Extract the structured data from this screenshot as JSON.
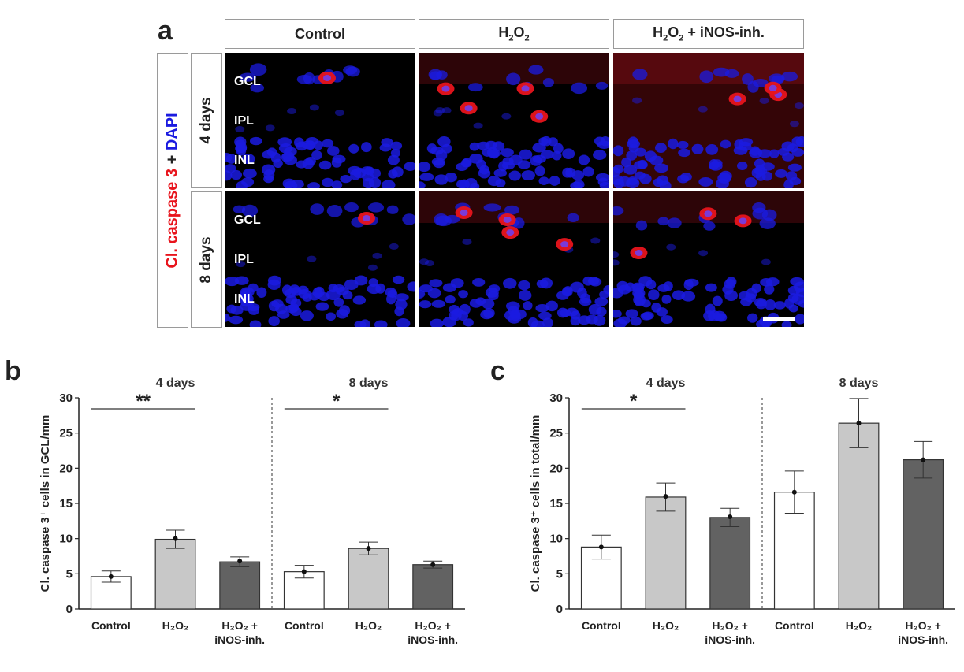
{
  "panel_a": {
    "letter": "a",
    "columns": [
      {
        "label_parts": [
          "Control"
        ]
      },
      {
        "label_parts": [
          "H",
          "2",
          "O",
          "2",
          ""
        ]
      },
      {
        "label_parts": [
          "H",
          "2",
          "O",
          "2",
          " + iNOS-inh."
        ]
      }
    ],
    "row_title": {
      "red": "Cl. caspase 3",
      "plus": " + ",
      "blue": "DAPI"
    },
    "rows": [
      "4 days",
      "8 days"
    ],
    "layer_labels": [
      "GCL",
      "IPL",
      "INL"
    ],
    "colors": {
      "red": "#e8141c",
      "blue": "#1b1be0"
    }
  },
  "chart_data": [
    {
      "type": "bar",
      "panel": "b",
      "ylabel": "Cl. caspase 3⁺ cells in GCL/mm",
      "ylim": [
        0,
        30
      ],
      "yticks": [
        "0",
        "5",
        "10",
        "15",
        "20",
        "25",
        "30"
      ],
      "groups": [
        {
          "title": "4 days",
          "categories": [
            "Control",
            "H₂O₂",
            "H₂O₂ + iNOS-inh."
          ],
          "values": [
            4.6,
            9.9,
            6.7
          ],
          "errors": [
            0.8,
            1.3,
            0.7
          ],
          "points": [
            4.6,
            10.0,
            6.8
          ],
          "significance": [
            {
              "from": 0,
              "to": 1,
              "label": "**"
            }
          ]
        },
        {
          "title": "8 days",
          "categories": [
            "Control",
            "H₂O₂",
            "H₂O₂ + iNOS-inh."
          ],
          "values": [
            5.3,
            8.6,
            6.3
          ],
          "errors": [
            0.9,
            0.9,
            0.5
          ],
          "points": [
            5.3,
            8.6,
            6.3
          ],
          "significance": [
            {
              "from": 0,
              "to": 1,
              "label": "*"
            }
          ]
        }
      ],
      "bar_colors": [
        "#ffffff",
        "#c8c8c8",
        "#626262"
      ]
    },
    {
      "type": "bar",
      "panel": "c",
      "ylabel": "Cl. caspase 3⁺ cells in total/mm",
      "ylim": [
        0,
        30
      ],
      "yticks": [
        "0",
        "5",
        "10",
        "15",
        "20",
        "25",
        "30"
      ],
      "groups": [
        {
          "title": "4 days",
          "categories": [
            "Control",
            "H₂O₂",
            "H₂O₂ + iNOS-inh."
          ],
          "values": [
            8.8,
            15.9,
            13.0
          ],
          "errors": [
            1.7,
            2.0,
            1.3
          ],
          "points": [
            8.8,
            16.0,
            13.1
          ],
          "significance": [
            {
              "from": 0,
              "to": 1,
              "label": "*"
            }
          ]
        },
        {
          "title": "8 days",
          "categories": [
            "Control",
            "H₂O₂",
            "H₂O₂ + iNOS-inh."
          ],
          "values": [
            16.6,
            26.4,
            21.2
          ],
          "errors": [
            3.0,
            3.5,
            2.6
          ],
          "points": [
            16.6,
            26.4,
            21.2
          ],
          "significance": []
        }
      ],
      "bar_colors": [
        "#ffffff",
        "#c8c8c8",
        "#626262"
      ]
    }
  ]
}
